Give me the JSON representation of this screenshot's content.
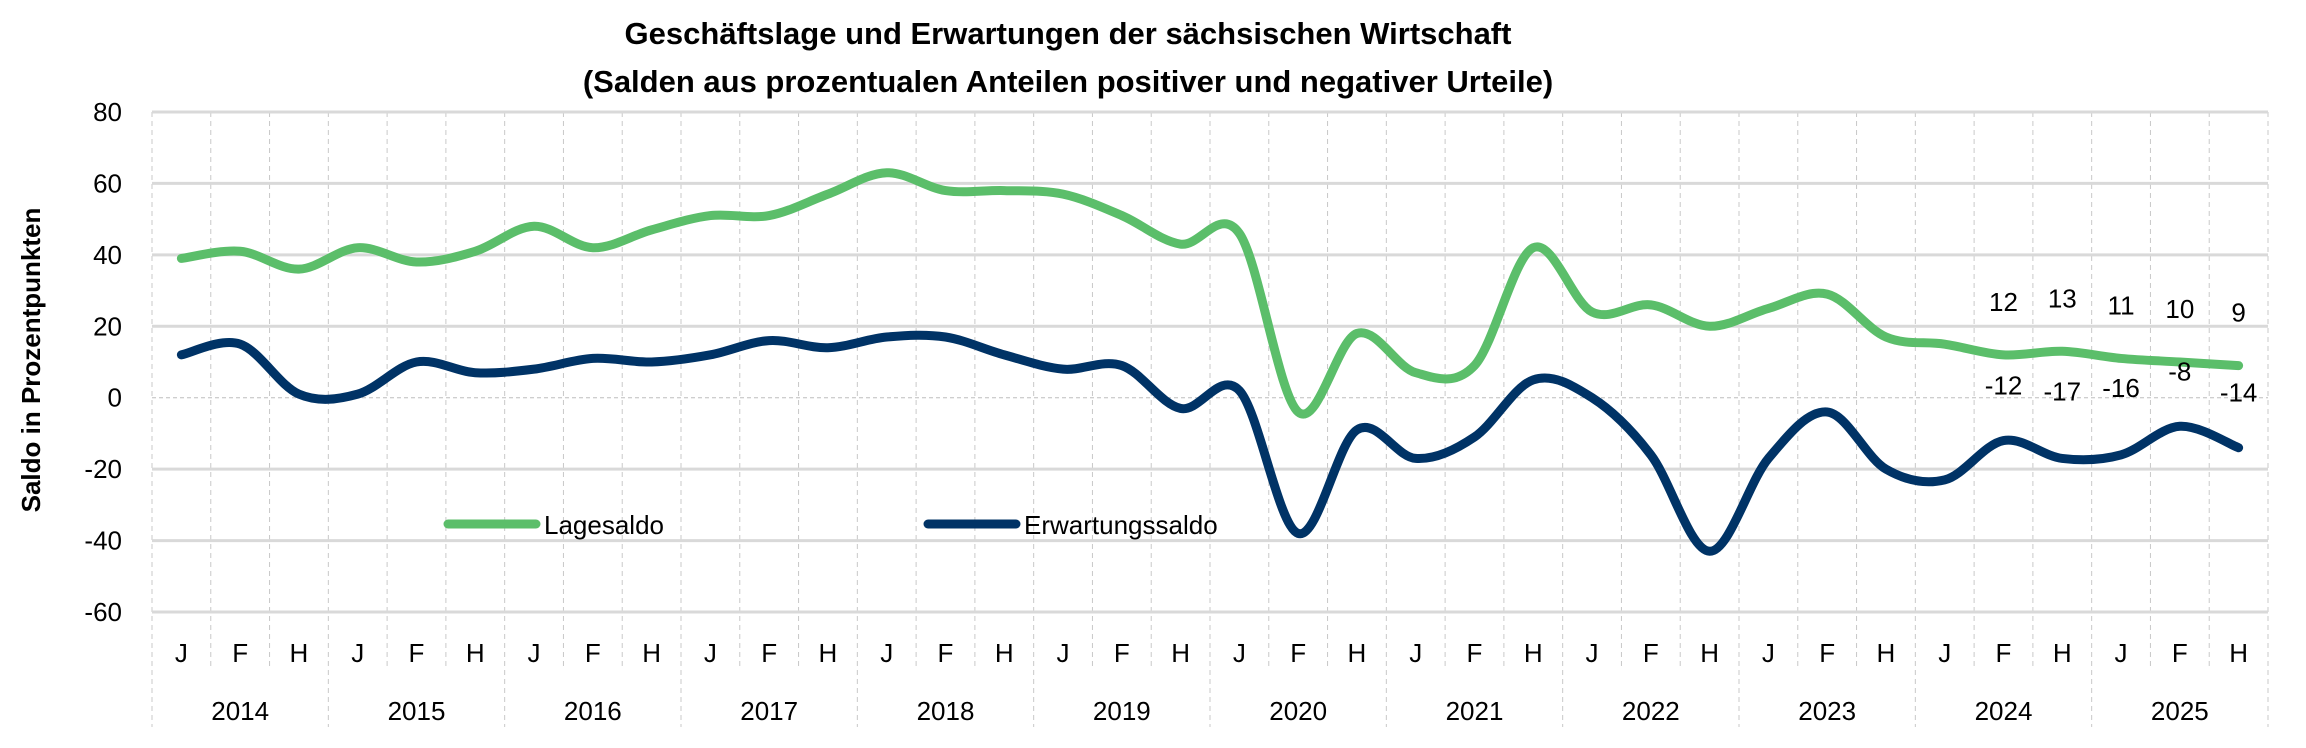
{
  "chart_data": {
    "type": "line",
    "title": "Geschäftslage und Erwartungen der sächsischen Wirtschaft",
    "subtitle": "(Salden aus prozentualen Anteilen positiver und negativer Urteile)",
    "xlabel": "",
    "ylabel": "Saldo in Prozentpunkten",
    "ylim": [
      -60,
      80
    ],
    "yticks": [
      "80",
      "60",
      "40",
      "20",
      "0",
      "-20",
      "-40",
      "-60"
    ],
    "ytick_values": [
      80,
      60,
      40,
      20,
      0,
      -20,
      -40,
      -60
    ],
    "years": [
      "2014",
      "2015",
      "2016",
      "2017",
      "2018",
      "2019",
      "2020",
      "2021",
      "2022",
      "2023",
      "2024",
      "2025"
    ],
    "periods_per_year": [
      "J",
      "F",
      "H"
    ],
    "grid": true,
    "legend_placement": "inside-lower-left",
    "series": [
      {
        "name": "Lagesaldo",
        "color": "#5BBE6A",
        "values": [
          39,
          41,
          36,
          42,
          38,
          41,
          48,
          42,
          47,
          51,
          51,
          57,
          63,
          58,
          58,
          57,
          51,
          43,
          46,
          -4,
          18,
          7,
          9,
          42,
          24,
          26,
          20,
          25,
          29,
          17,
          15,
          12,
          13,
          11,
          10,
          9
        ],
        "data_labels": [
          "12",
          "13",
          "11",
          "10",
          "9"
        ]
      },
      {
        "name": "Erwartungssaldo",
        "color": "#003366",
        "values": [
          12,
          15,
          1,
          1,
          10,
          7,
          8,
          11,
          10,
          12,
          16,
          14,
          17,
          17,
          12,
          8,
          9,
          -3,
          2,
          -38,
          -9,
          -17,
          -11,
          5,
          0,
          -16,
          -43,
          -17,
          -4,
          -20,
          -23,
          -12,
          -17,
          -16,
          -8,
          -14
        ],
        "data_labels": [
          "-12",
          "-17",
          "-16",
          "-8",
          "-14"
        ]
      }
    ]
  }
}
